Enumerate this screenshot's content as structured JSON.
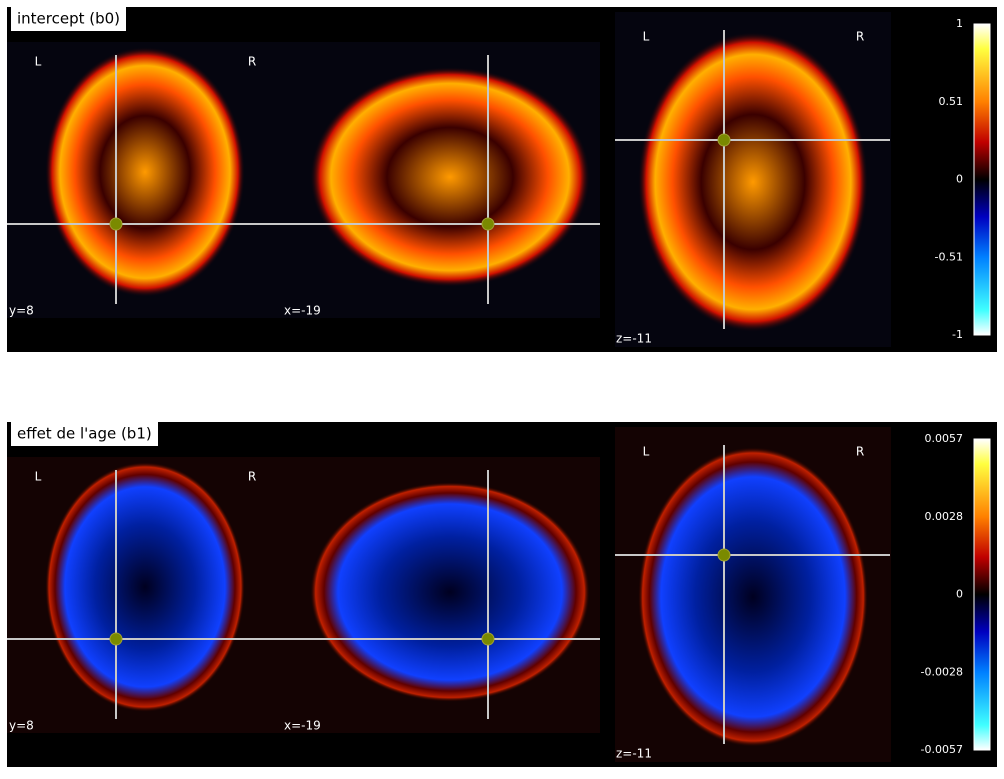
{
  "panels": [
    {
      "title": "intercept (b0)",
      "views": [
        {
          "cut": "y=8",
          "left": "L",
          "right": "R"
        },
        {
          "cut": "x=-19"
        },
        {
          "cut": "z=-11",
          "left": "L",
          "right": "R"
        }
      ],
      "colorbar_ticks": [
        "1",
        "0.51",
        "0",
        "-0.51",
        "-1"
      ]
    },
    {
      "title": "effet de l'age (b1)",
      "views": [
        {
          "cut": "y=8",
          "left": "L",
          "right": "R"
        },
        {
          "cut": "x=-19"
        },
        {
          "cut": "z=-11",
          "left": "L",
          "right": "R"
        }
      ],
      "colorbar_ticks": [
        "0.0057",
        "0.0028",
        "0",
        "-0.0028",
        "-0.0057"
      ]
    }
  ]
}
